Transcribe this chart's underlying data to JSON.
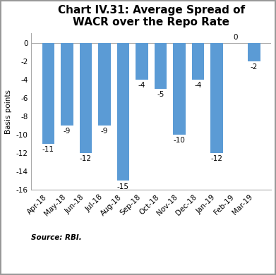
{
  "title": "Chart IV.31: Average Spread of\nWACR over the Repo Rate",
  "categories": [
    "Apr-18",
    "May-18",
    "Jun-18",
    "Jul-18",
    "Aug-18",
    "Sep-18",
    "Oct-18",
    "Nov-18",
    "Dec-18",
    "Jan-19",
    "Feb-19",
    "Mar-19"
  ],
  "values": [
    -11,
    -9,
    -12,
    -9,
    -15,
    -4,
    -5,
    -10,
    -4,
    -12,
    0,
    -2
  ],
  "bar_color": "#5b9bd5",
  "ylabel": "Basis points",
  "ylim": [
    -16,
    1
  ],
  "yticks": [
    0,
    -2,
    -4,
    -6,
    -8,
    -10,
    -12,
    -14,
    -16
  ],
  "source_text": "Source: RBI.",
  "title_fontsize": 11,
  "label_fontsize": 7.5,
  "axis_fontsize": 7.5,
  "source_fontsize": 7.5,
  "background_color": "#ffffff"
}
